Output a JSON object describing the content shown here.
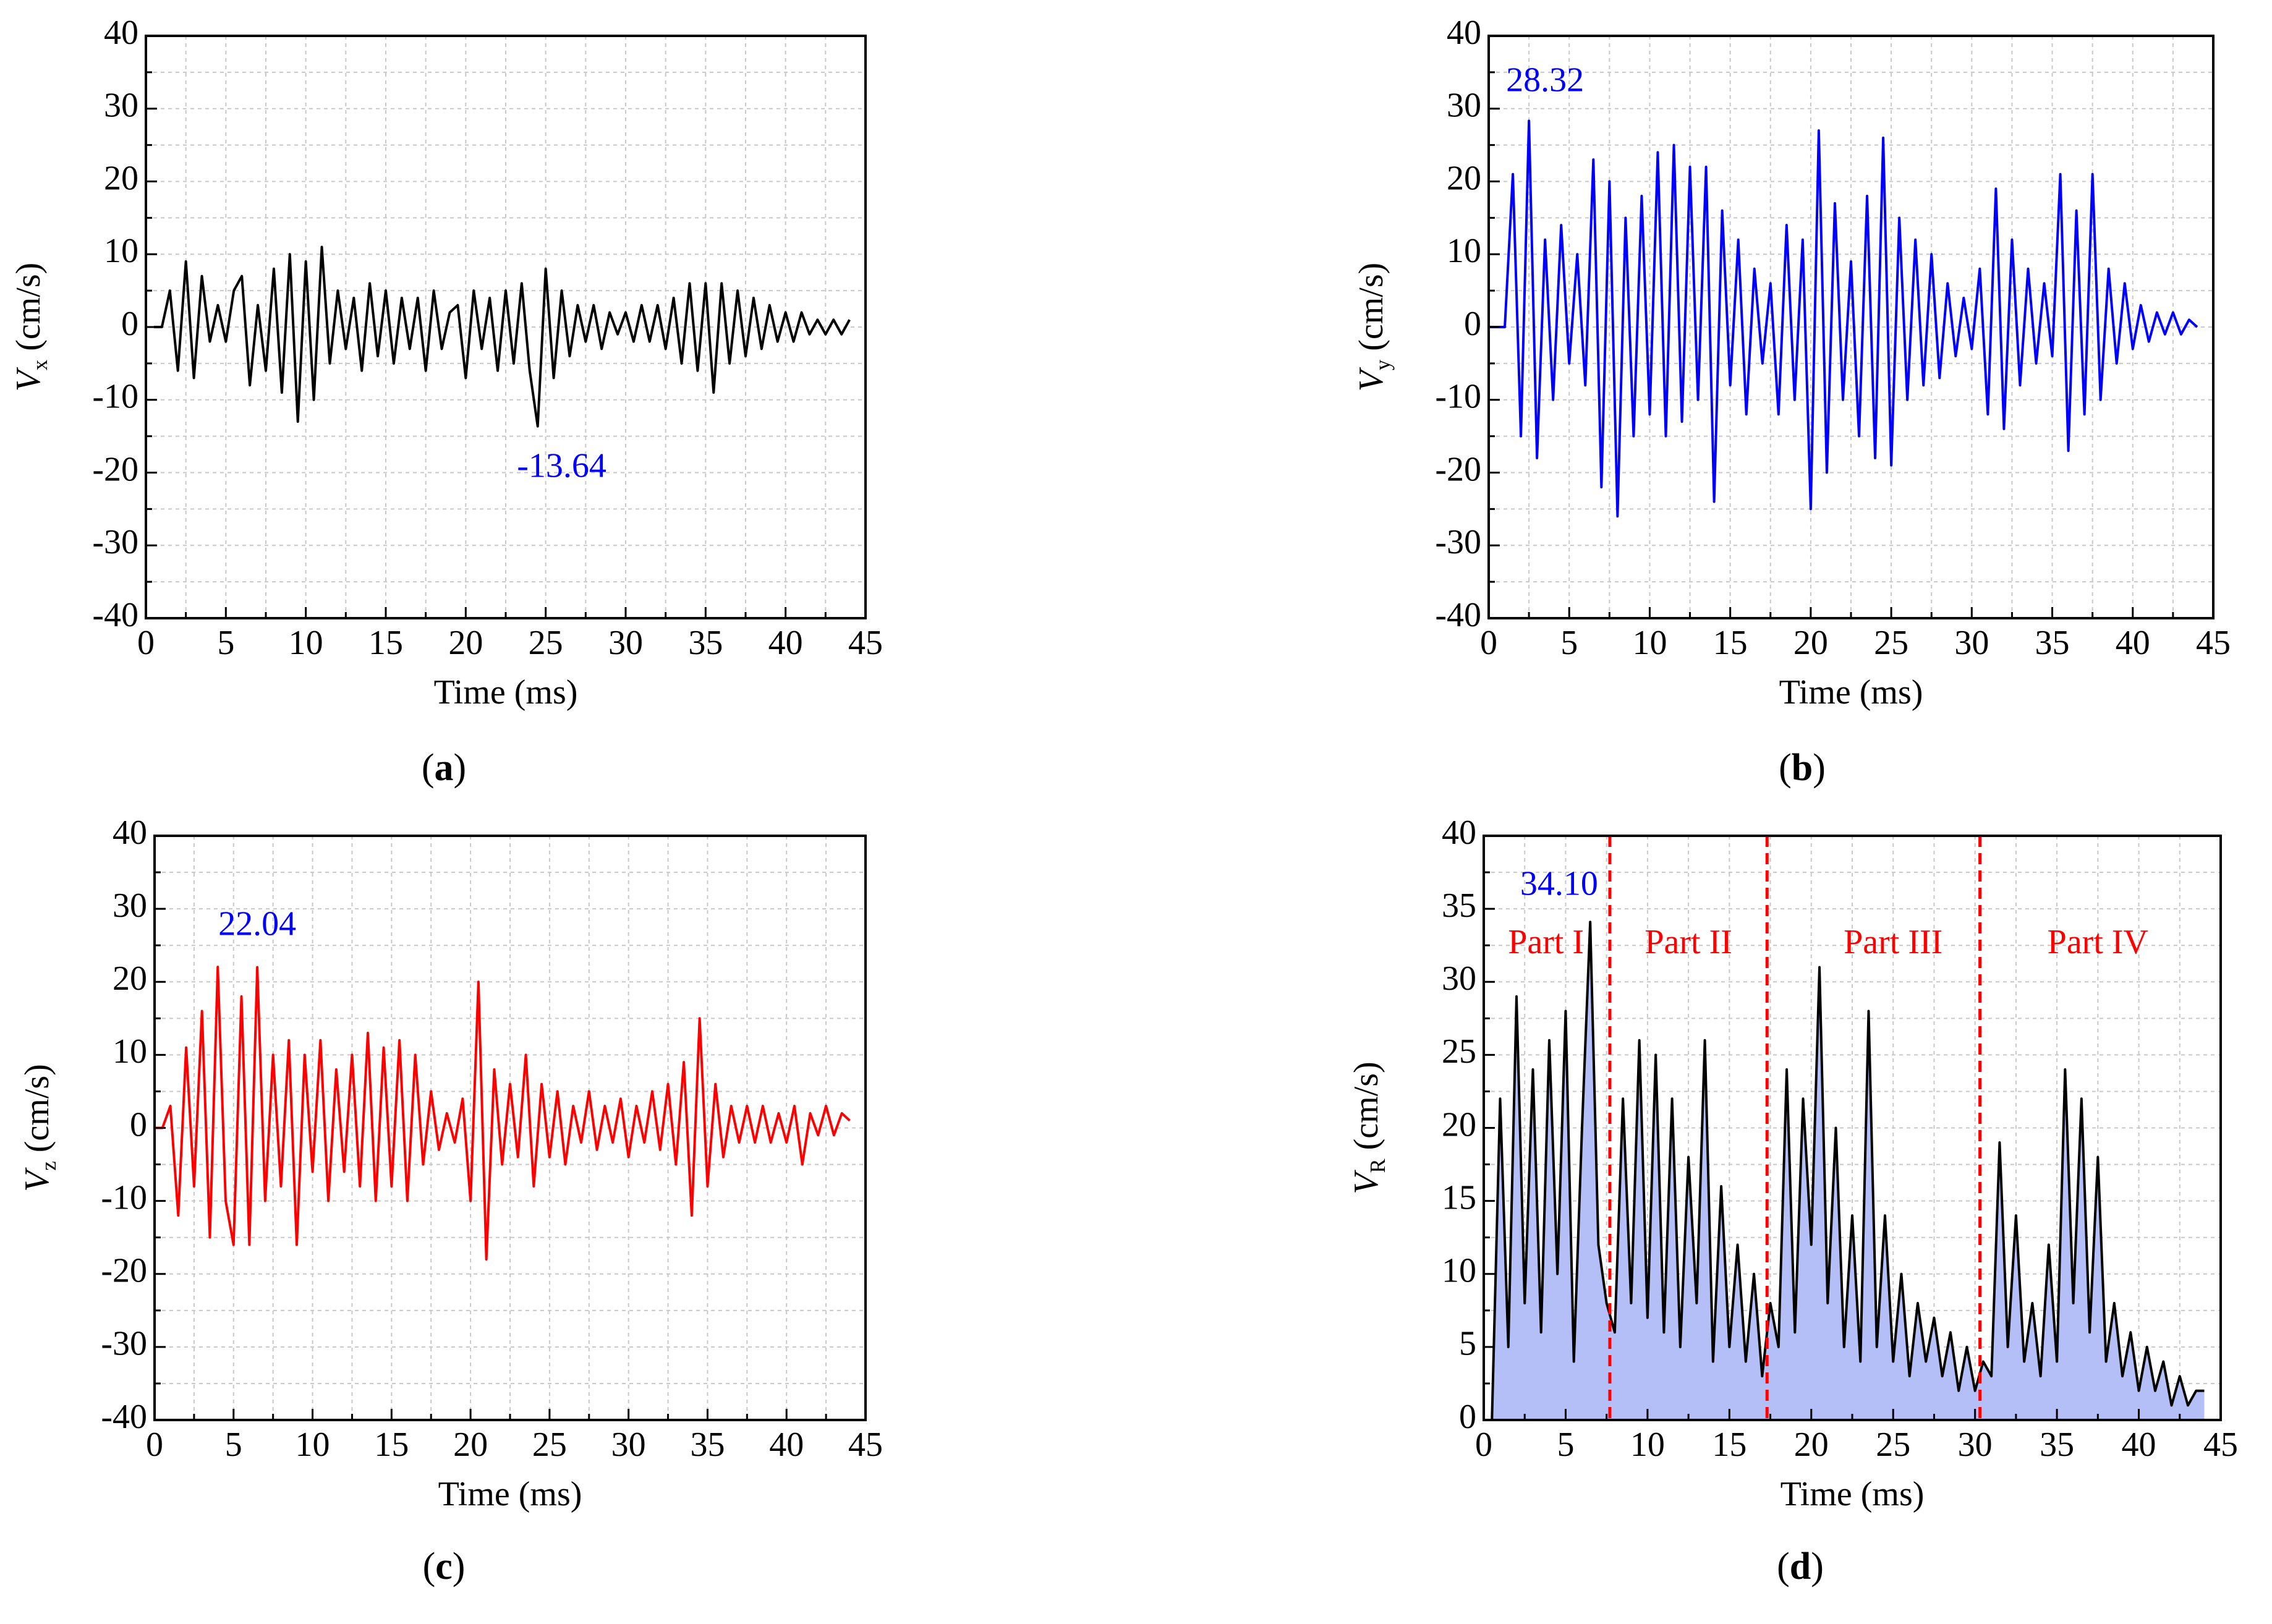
{
  "chart_data": [
    {
      "panel": "(a)",
      "type": "line",
      "ylabel_symbol": "V",
      "ylabel_sub": "x",
      "ylabel_unit": " (cm/s)",
      "xlabel": "Time (ms)",
      "xlim": [
        0,
        45
      ],
      "ylim": [
        -40,
        40
      ],
      "xticks": [
        0,
        5,
        10,
        15,
        20,
        25,
        30,
        35,
        40,
        45
      ],
      "yticks": [
        -40,
        -30,
        -20,
        -10,
        0,
        10,
        20,
        30,
        40
      ],
      "series": [
        {
          "name": "Vx",
          "color": "#000000",
          "x": [
            0.5,
            1.0,
            1.5,
            2.0,
            2.5,
            3.0,
            3.5,
            4.0,
            4.5,
            5.0,
            5.5,
            6.0,
            6.5,
            7.0,
            7.5,
            8.0,
            8.5,
            9.0,
            9.5,
            10.0,
            10.5,
            11.0,
            11.5,
            12.0,
            12.5,
            13.0,
            13.5,
            14.0,
            14.5,
            15.0,
            15.5,
            16.0,
            16.5,
            17.0,
            17.5,
            18.0,
            18.5,
            19.0,
            19.5,
            20.0,
            20.5,
            21.0,
            21.5,
            22.0,
            22.5,
            23.0,
            23.5,
            24.0,
            24.5,
            25.0,
            25.5,
            26.0,
            26.5,
            27.0,
            27.5,
            28.0,
            28.5,
            29.0,
            29.5,
            30.0,
            30.5,
            31.0,
            31.5,
            32.0,
            32.5,
            33.0,
            33.5,
            34.0,
            34.5,
            35.0,
            35.5,
            36.0,
            36.5,
            37.0,
            37.5,
            38.0,
            38.5,
            39.0,
            39.5,
            40.0,
            40.5,
            41.0,
            41.5,
            42.0,
            42.5,
            43.0,
            43.5,
            44.0
          ],
          "values": [
            0,
            0,
            5,
            -6,
            9,
            -7,
            7,
            -2,
            3,
            -2,
            5,
            7,
            -8,
            3,
            -6,
            8,
            -9,
            10,
            -13,
            9,
            -10,
            11,
            -5,
            5,
            -3,
            4,
            -6,
            6,
            -4,
            5,
            -5,
            4,
            -3,
            4,
            -6,
            5,
            -3,
            2,
            3,
            -7,
            5,
            -3,
            4,
            -6,
            5,
            -5,
            6,
            -6,
            -13.64,
            8,
            -7,
            5,
            -4,
            3,
            -2,
            3,
            -3,
            2,
            -1,
            2,
            -2,
            3,
            -2,
            3,
            -3,
            4,
            -5,
            6,
            -6,
            6,
            -9,
            6,
            -5,
            5,
            -4,
            4,
            -3,
            3,
            -2,
            2,
            -2,
            2,
            -1,
            1,
            -1,
            1,
            -1,
            1
          ]
        }
      ],
      "annotation": {
        "text": "-13.64",
        "x": 26.0,
        "y": -19.5,
        "color": "#0000ff"
      }
    },
    {
      "panel": "(b)",
      "type": "line",
      "ylabel_symbol": "V",
      "ylabel_sub": "y",
      "ylabel_unit": " (cm/s)",
      "xlabel": "Time (ms)",
      "xlim": [
        0,
        45
      ],
      "ylim": [
        -40,
        40
      ],
      "xticks": [
        0,
        5,
        10,
        15,
        20,
        25,
        30,
        35,
        40,
        45
      ],
      "yticks": [
        -40,
        -30,
        -20,
        -10,
        0,
        10,
        20,
        30,
        40
      ],
      "series": [
        {
          "name": "Vy",
          "color": "#0000ff",
          "x": [
            0.0,
            0.5,
            1.0,
            1.5,
            2.0,
            2.5,
            3.0,
            3.5,
            4.0,
            4.5,
            5.0,
            5.5,
            6.0,
            6.5,
            7.0,
            7.5,
            8.0,
            8.5,
            9.0,
            9.5,
            10.0,
            10.5,
            11.0,
            11.5,
            12.0,
            12.5,
            13.0,
            13.5,
            14.0,
            14.5,
            15.0,
            15.5,
            16.0,
            16.5,
            17.0,
            17.5,
            18.0,
            18.5,
            19.0,
            19.5,
            20.0,
            20.5,
            21.0,
            21.5,
            22.0,
            22.5,
            23.0,
            23.5,
            24.0,
            24.5,
            25.0,
            25.5,
            26.0,
            26.5,
            27.0,
            27.5,
            28.0,
            28.5,
            29.0,
            29.5,
            30.0,
            30.5,
            31.0,
            31.5,
            32.0,
            32.5,
            33.0,
            33.5,
            34.0,
            34.5,
            35.0,
            35.5,
            36.0,
            36.5,
            37.0,
            37.5,
            38.0,
            38.5,
            39.0,
            39.5,
            40.0,
            40.5,
            41.0,
            41.5,
            42.0,
            42.5,
            43.0,
            43.5,
            44.0
          ],
          "values": [
            0,
            0,
            0,
            21,
            -15,
            28.32,
            -18,
            12,
            -10,
            14,
            -5,
            10,
            -8,
            23,
            -22,
            20,
            -26,
            15,
            -15,
            18,
            -12,
            24,
            -15,
            25,
            -13,
            22,
            -10,
            22,
            -24,
            16,
            -8,
            12,
            -12,
            8,
            -5,
            6,
            -12,
            14,
            -10,
            12,
            -25,
            27,
            -20,
            17,
            -10,
            9,
            -15,
            18,
            -18,
            26,
            -19,
            15,
            -10,
            12,
            -8,
            10,
            -7,
            6,
            -4,
            4,
            -3,
            8,
            -12,
            19,
            -14,
            12,
            -8,
            8,
            -5,
            6,
            -4,
            21,
            -17,
            16,
            -12,
            21,
            -10,
            8,
            -5,
            6,
            -3,
            3,
            -2,
            2,
            -1,
            2,
            -1,
            1,
            0
          ]
        }
      ],
      "annotation": {
        "text": "28.32",
        "x": 3.5,
        "y": 33.5,
        "color": "#0000ff"
      }
    },
    {
      "panel": "(c)",
      "type": "line",
      "ylabel_symbol": "V",
      "ylabel_sub": "z",
      "ylabel_unit": " (cm/s)",
      "xlabel": "Time (ms)",
      "xlim": [
        0,
        45
      ],
      "ylim": [
        -40,
        40
      ],
      "xticks": [
        0,
        5,
        10,
        15,
        20,
        25,
        30,
        35,
        40,
        45
      ],
      "yticks": [
        -40,
        -30,
        -20,
        -10,
        0,
        10,
        20,
        30,
        40
      ],
      "series": [
        {
          "name": "Vz",
          "color": "#ff0000",
          "x": [
            0.0,
            0.5,
            1.0,
            1.5,
            2.0,
            2.5,
            3.0,
            3.5,
            4.0,
            4.5,
            5.0,
            5.5,
            6.0,
            6.5,
            7.0,
            7.5,
            8.0,
            8.5,
            9.0,
            9.5,
            10.0,
            10.5,
            11.0,
            11.5,
            12.0,
            12.5,
            13.0,
            13.5,
            14.0,
            14.5,
            15.0,
            15.5,
            16.0,
            16.5,
            17.0,
            17.5,
            18.0,
            18.5,
            19.0,
            19.5,
            20.0,
            20.5,
            21.0,
            21.5,
            22.0,
            22.5,
            23.0,
            23.5,
            24.0,
            24.5,
            25.0,
            25.5,
            26.0,
            26.5,
            27.0,
            27.5,
            28.0,
            28.5,
            29.0,
            29.5,
            30.0,
            30.5,
            31.0,
            31.5,
            32.0,
            32.5,
            33.0,
            33.5,
            34.0,
            34.5,
            35.0,
            35.5,
            36.0,
            36.5,
            37.0,
            37.5,
            38.0,
            38.5,
            39.0,
            39.5,
            40.0,
            40.5,
            41.0,
            41.5,
            42.0,
            42.5,
            43.0,
            43.5,
            44.0
          ],
          "values": [
            0,
            0,
            3,
            -12,
            11,
            -8,
            16,
            -15,
            22.04,
            -10,
            -16,
            18,
            -16,
            22,
            -10,
            10,
            -8,
            12,
            -16,
            10,
            -6,
            12,
            -10,
            8,
            -6,
            10,
            -8,
            13,
            -10,
            11,
            -8,
            12,
            -10,
            10,
            -5,
            5,
            -3,
            2,
            -2,
            4,
            -10,
            20,
            -18,
            8,
            -5,
            6,
            -4,
            10,
            -8,
            6,
            -4,
            5,
            -5,
            3,
            -2,
            5,
            -3,
            3,
            -2,
            4,
            -4,
            3,
            -2,
            5,
            -3,
            6,
            -5,
            9,
            -12,
            15,
            -8,
            6,
            -4,
            3,
            -2,
            3,
            -2,
            3,
            -2,
            2,
            -2,
            3,
            -5,
            2,
            -1,
            3,
            -1,
            2,
            1
          ]
        }
      ],
      "annotation": {
        "text": "22.04",
        "x": 6.5,
        "y": 27.5,
        "color": "#0000ff"
      }
    },
    {
      "panel": "(d)",
      "type": "area",
      "ylabel_symbol": "V",
      "ylabel_sub": "R",
      "ylabel_unit": " (cm/s)",
      "xlabel": "Time (ms)",
      "xlim": [
        0,
        45
      ],
      "ylim": [
        0,
        40
      ],
      "xticks": [
        0,
        5,
        10,
        15,
        20,
        25,
        30,
        35,
        40,
        45
      ],
      "yticks": [
        0,
        5,
        10,
        15,
        20,
        25,
        30,
        35,
        40
      ],
      "fill_color": "#b4bef7",
      "series": [
        {
          "name": "VR",
          "color": "#000000",
          "x": [
            0.0,
            0.5,
            1.0,
            1.5,
            2.0,
            2.5,
            3.0,
            3.5,
            4.0,
            4.5,
            5.0,
            5.5,
            6.0,
            6.5,
            7.0,
            7.5,
            8.0,
            8.5,
            9.0,
            9.5,
            10.0,
            10.5,
            11.0,
            11.5,
            12.0,
            12.5,
            13.0,
            13.5,
            14.0,
            14.5,
            15.0,
            15.5,
            16.0,
            16.5,
            17.0,
            17.5,
            18.0,
            18.5,
            19.0,
            19.5,
            20.0,
            20.5,
            21.0,
            21.5,
            22.0,
            22.5,
            23.0,
            23.5,
            24.0,
            24.5,
            25.0,
            25.5,
            26.0,
            26.5,
            27.0,
            27.5,
            28.0,
            28.5,
            29.0,
            29.5,
            30.0,
            30.5,
            31.0,
            31.5,
            32.0,
            32.5,
            33.0,
            33.5,
            34.0,
            34.5,
            35.0,
            35.5,
            36.0,
            36.5,
            37.0,
            37.5,
            38.0,
            38.5,
            39.0,
            39.5,
            40.0,
            40.5,
            41.0,
            41.5,
            42.0,
            42.5,
            43.0,
            43.5,
            44.0
          ],
          "values": [
            0,
            0,
            22,
            5,
            29,
            8,
            24,
            6,
            26,
            10,
            28,
            4,
            20,
            34.1,
            12,
            8,
            6,
            22,
            8,
            26,
            7,
            25,
            6,
            22,
            5,
            18,
            8,
            26,
            4,
            16,
            5,
            12,
            4,
            10,
            3,
            8,
            5,
            24,
            6,
            22,
            12,
            31,
            8,
            20,
            5,
            14,
            4,
            28,
            5,
            14,
            4,
            10,
            3,
            8,
            4,
            7,
            3,
            6,
            2,
            5,
            2,
            4,
            3,
            19,
            5,
            14,
            4,
            8,
            3,
            12,
            4,
            24,
            8,
            22,
            6,
            18,
            4,
            8,
            3,
            6,
            2,
            5,
            2,
            4,
            1,
            3,
            1,
            2,
            2
          ]
        }
      ],
      "dividers": [
        7.7,
        17.3,
        30.3
      ],
      "divider_color": "#ff0000",
      "parts": [
        {
          "label": "Part I",
          "x": 3.8,
          "y": 32.5
        },
        {
          "label": "Part II",
          "x": 12.5,
          "y": 32.5
        },
        {
          "label": "Part III",
          "x": 25.0,
          "y": 32.5
        },
        {
          "label": "Part IV",
          "x": 37.5,
          "y": 32.5
        }
      ],
      "parts_color": "#ff0000",
      "annotation": {
        "text": "34.10",
        "x": 4.6,
        "y": 36.5,
        "color": "#0000ff"
      }
    }
  ]
}
